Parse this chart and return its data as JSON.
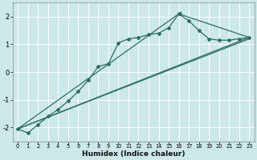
{
  "xlabel": "Humidex (Indice chaleur)",
  "bg_color": "#cce8e8",
  "grid_color": "#ffffff",
  "line_color": "#2e6e64",
  "xlim": [
    -0.5,
    23.5
  ],
  "ylim": [
    -2.5,
    2.5
  ],
  "yticks": [
    -2,
    -1,
    0,
    1,
    2
  ],
  "xticks": [
    0,
    1,
    2,
    3,
    4,
    5,
    6,
    7,
    8,
    9,
    10,
    11,
    12,
    13,
    14,
    15,
    16,
    17,
    18,
    19,
    20,
    21,
    22,
    23
  ],
  "line1_x": [
    0,
    1,
    2,
    3,
    4,
    5,
    6,
    7,
    8,
    9,
    10,
    11,
    12,
    13,
    14,
    15,
    16,
    17,
    18,
    19,
    20,
    21,
    22,
    23
  ],
  "line1_y": [
    -2.05,
    -2.2,
    -1.9,
    -1.6,
    -1.35,
    -1.05,
    -0.7,
    -0.3,
    0.2,
    0.3,
    1.05,
    1.2,
    1.25,
    1.35,
    1.4,
    1.6,
    2.1,
    1.85,
    1.5,
    1.2,
    1.15,
    1.15,
    1.2,
    1.25
  ],
  "line2_x": [
    0,
    23
  ],
  "line2_y": [
    -2.05,
    1.25
  ],
  "line3_x": [
    0,
    23
  ],
  "line3_y": [
    -2.05,
    1.2
  ],
  "line4_x": [
    0,
    16,
    23
  ],
  "line4_y": [
    -2.05,
    2.1,
    1.25
  ],
  "marker_x": [
    16
  ],
  "marker_y": [
    2.1
  ]
}
